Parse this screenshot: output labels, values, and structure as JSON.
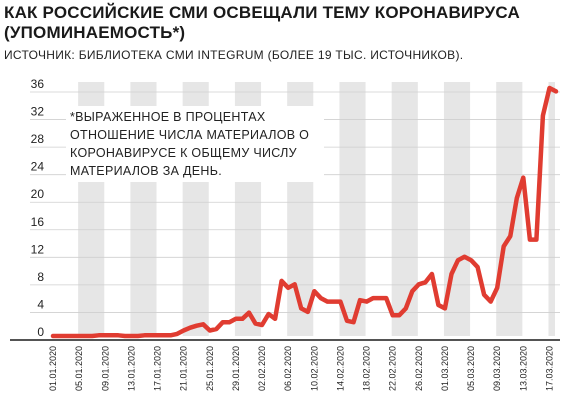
{
  "header": {
    "title": "КАК РОССИЙСКИЕ СМИ ОСВЕЩАЛИ ТЕМУ КОРОНАВИРУСА (УПОМИНАЕМОСТЬ*)",
    "source": "ИСТОЧНИК: БИБЛИОТЕКА СМИ INTEGRUM (БОЛЕЕ 19 ТЫС. ИСТОЧНИКОВ)."
  },
  "note": "*ВЫРАЖЕННОЕ В ПРОЦЕНТАХ ОТНОШЕНИЕ ЧИСЛА МАТЕРИАЛОВ О КОРОНАВИРУСЕ К ОБЩЕМУ ЧИСЛУ МАТЕРИАЛОВ ЗА ДЕНЬ.",
  "colors": {
    "line": "#e03c31",
    "band": "#e6e6e6",
    "grid": "#cfcfcf",
    "axis": "#1a1a1a"
  },
  "chart_data": {
    "type": "line",
    "title": "КАК РОССИЙСКИЕ СМИ ОСВЕЩАЛИ ТЕМУ КОРОНАВИРУСА (УПОМИНАЕМОСТЬ*)",
    "xlabel": "",
    "ylabel": "",
    "ylim": [
      0,
      36
    ],
    "yticks": [
      0,
      4,
      8,
      12,
      16,
      20,
      24,
      28,
      32,
      36
    ],
    "grid": true,
    "x_tick_labels": [
      "01.01.2020",
      "05.01.2020",
      "09.01.2020",
      "13.01.2020",
      "17.01.2020",
      "21.01.2020",
      "25.01.2020",
      "29.01.2020",
      "02.02.2020",
      "06.02.2020",
      "10.02.2020",
      "14.02.2020",
      "18.02.2020",
      "22.02.2020",
      "26.02.2020",
      "01.03.2020",
      "05.03.2020",
      "09.03.2020",
      "13.03.2020",
      "17.03.2020"
    ],
    "series": [
      {
        "name": "",
        "x": [
          "01.01.2020",
          "02.01.2020",
          "03.01.2020",
          "04.01.2020",
          "05.01.2020",
          "06.01.2020",
          "07.01.2020",
          "08.01.2020",
          "09.01.2020",
          "10.01.2020",
          "11.01.2020",
          "12.01.2020",
          "13.01.2020",
          "14.01.2020",
          "15.01.2020",
          "16.01.2020",
          "17.01.2020",
          "18.01.2020",
          "19.01.2020",
          "20.01.2020",
          "21.01.2020",
          "22.01.2020",
          "23.01.2020",
          "24.01.2020",
          "25.01.2020",
          "26.01.2020",
          "27.01.2020",
          "28.01.2020",
          "29.01.2020",
          "30.01.2020",
          "31.01.2020",
          "01.02.2020",
          "02.02.2020",
          "03.02.2020",
          "04.02.2020",
          "05.02.2020",
          "06.02.2020",
          "07.02.2020",
          "08.02.2020",
          "09.02.2020",
          "10.02.2020",
          "11.02.2020",
          "12.02.2020",
          "13.02.2020",
          "14.02.2020",
          "15.02.2020",
          "16.02.2020",
          "17.02.2020",
          "18.02.2020",
          "19.02.2020",
          "20.02.2020",
          "21.02.2020",
          "22.02.2020",
          "23.02.2020",
          "24.02.2020",
          "25.02.2020",
          "26.02.2020",
          "27.02.2020",
          "28.02.2020",
          "29.02.2020",
          "01.03.2020",
          "02.03.2020",
          "03.03.2020",
          "04.03.2020",
          "05.03.2020",
          "06.03.2020",
          "07.03.2020",
          "08.03.2020",
          "09.03.2020",
          "10.03.2020",
          "11.03.2020",
          "12.03.2020",
          "13.03.2020",
          "14.03.2020",
          "15.03.2020",
          "16.03.2020",
          "17.03.2020",
          "18.03.2020"
        ],
        "values": [
          0,
          0,
          0,
          0,
          0,
          0,
          0,
          0.1,
          0.1,
          0.1,
          0.1,
          0,
          0,
          0,
          0.1,
          0.1,
          0.1,
          0.1,
          0.1,
          0.3,
          0.8,
          1.2,
          1.5,
          1.7,
          0.8,
          1.0,
          2.0,
          2.0,
          2.5,
          2.5,
          3.4,
          1.8,
          1.6,
          3.2,
          2.5,
          8.0,
          7.0,
          7.5,
          4.0,
          3.5,
          6.5,
          5.5,
          5.0,
          5.0,
          5.0,
          2.2,
          2.0,
          5.2,
          5.0,
          5.5,
          5.5,
          5.5,
          3.0,
          3.0,
          4.0,
          6.5,
          7.5,
          7.8,
          9.0,
          4.5,
          4.0,
          9.0,
          11.0,
          11.5,
          11.0,
          10.0,
          6.0,
          5.0,
          7.0,
          13.0,
          14.5,
          20.0,
          23.0,
          14.0,
          14.0,
          32.0,
          36.0,
          35.5
        ]
      }
    ]
  }
}
